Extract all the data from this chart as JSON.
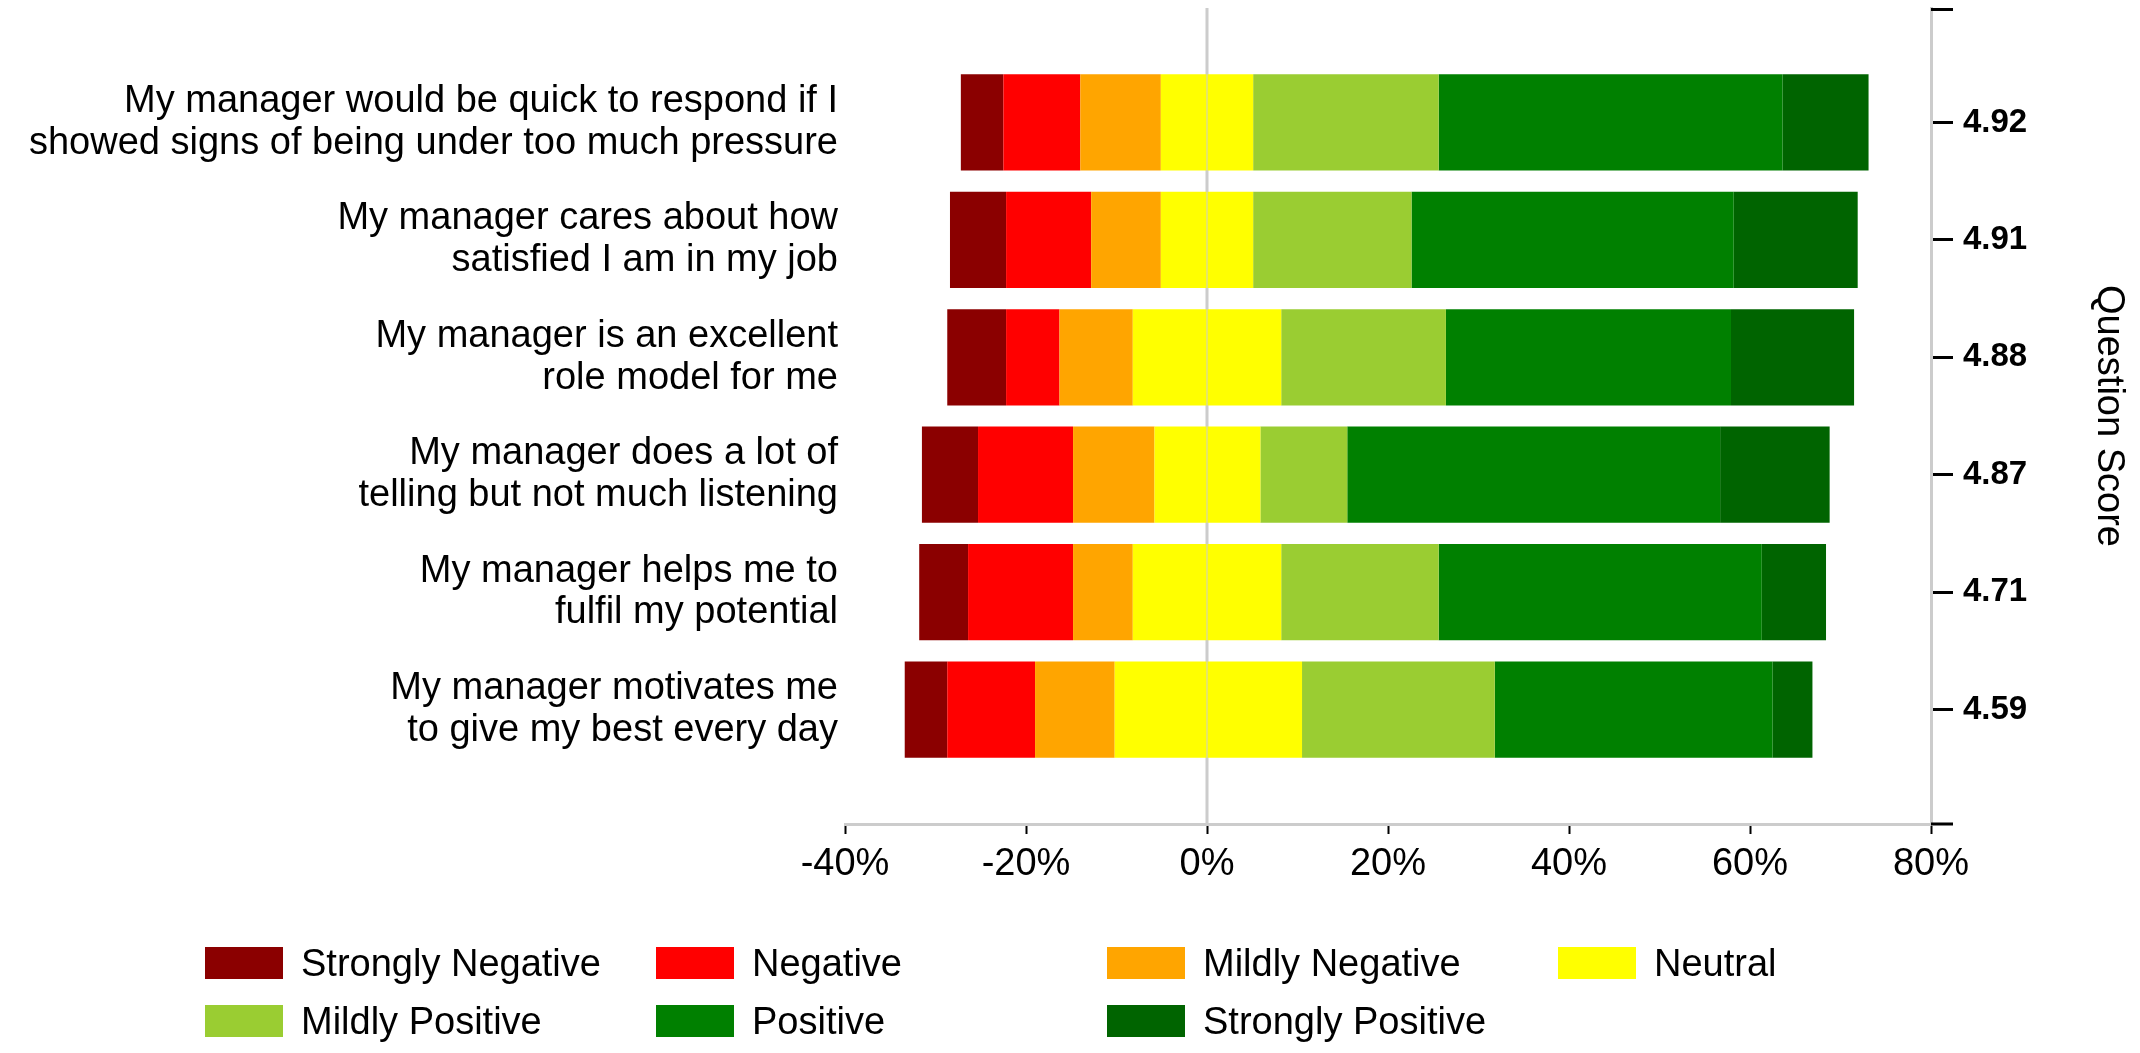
{
  "chart_data": {
    "type": "bar",
    "orientation": "horizontal",
    "stacked": true,
    "categories": [
      "My manager would be quick to respond if I showed signs of being under too much pressure",
      "My manager cares about how satisfied I am in my job",
      "My manager is an excellent role model for me",
      "My manager does a lot of telling but not much listening",
      "My manager helps me to fulfil my potential",
      "My manager motivates me to give my best every day"
    ],
    "y2_categories": [
      "4.92",
      "4.91",
      "4.88",
      "4.87",
      "4.71",
      "4.59"
    ],
    "y2label": "Question Score",
    "series": [
      {
        "color": "#ffff00",
        "values": [
          -5.1,
          -5.1,
          -8.2,
          -5.8,
          -8.2,
          -10.2
        ]
      },
      {
        "name": "Mildly Negative",
        "color": "#ffa500",
        "values": [
          -8.9,
          -7.7,
          -8.1,
          -9.0,
          -6.6,
          -8.8
        ]
      },
      {
        "name": "Negative",
        "color": "#ff0000",
        "values": [
          -8.5,
          -9.4,
          -5.9,
          -10.5,
          -11.6,
          -9.7
        ]
      },
      {
        "name": "Strongly Negative",
        "color": "#8b0000",
        "values": [
          -4.7,
          -6.2,
          -6.5,
          -6.2,
          -5.4,
          -4.7
        ]
      },
      {
        "name": "Neutral",
        "color": "#ffff00",
        "values": [
          5.1,
          5.1,
          8.2,
          5.9,
          8.2,
          10.5
        ]
      },
      {
        "name": "Mildly Positive",
        "color": "#9acd32",
        "values": [
          20.5,
          17.5,
          18.2,
          9.6,
          17.4,
          21.3
        ]
      },
      {
        "name": "Positive",
        "color": "#008000",
        "values": [
          38.0,
          35.6,
          31.5,
          41.2,
          35.7,
          30.7
        ]
      },
      {
        "name": "Strongly Positive",
        "color": "#006400",
        "values": [
          9.5,
          13.7,
          13.6,
          12.1,
          7.1,
          4.4
        ]
      }
    ],
    "xlim": [
      -40,
      80
    ],
    "xticks": [
      {
        "value": -40,
        "label": "-40%"
      },
      {
        "value": -20,
        "label": "-20%"
      },
      {
        "value": 0,
        "label": "0%"
      },
      {
        "value": 20,
        "label": "20%"
      },
      {
        "value": 40,
        "label": "40%"
      },
      {
        "value": 60,
        "label": "60%"
      },
      {
        "value": 80,
        "label": "80%"
      }
    ],
    "ref_lines": [
      {
        "axis": "x",
        "value": 0,
        "color": "#cccccc"
      }
    ],
    "legend": "bottom"
  }
}
